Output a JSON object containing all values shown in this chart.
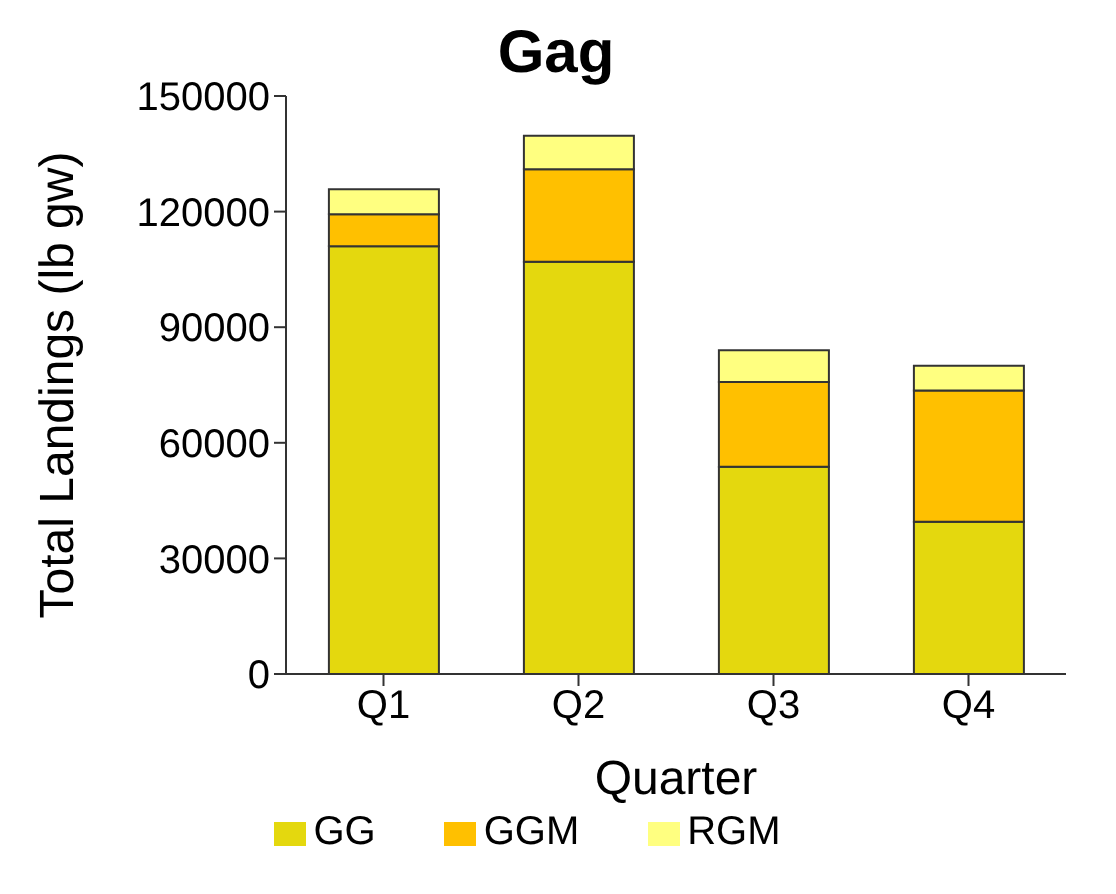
{
  "chart_data": {
    "type": "bar",
    "title": "Gag",
    "xlabel": "Quarter",
    "ylabel": "Total Landings (lb gw)",
    "categories": [
      "Q1",
      "Q2",
      "Q3",
      "Q4"
    ],
    "stacked": true,
    "ylim": [
      0,
      150000
    ],
    "yticks": [
      0,
      30000,
      60000,
      90000,
      120000,
      150000
    ],
    "grid": false,
    "legend": "bottom",
    "series": [
      {
        "name": "GG",
        "color": "#e4d80e",
        "values": [
          111000,
          107000,
          53800,
          39500
        ]
      },
      {
        "name": "GGM",
        "color": "#ffc000",
        "values": [
          8300,
          24000,
          22000,
          34100
        ]
      },
      {
        "name": "RGM",
        "color": "#ffff80",
        "values": [
          6500,
          8700,
          8200,
          6400
        ]
      }
    ]
  }
}
